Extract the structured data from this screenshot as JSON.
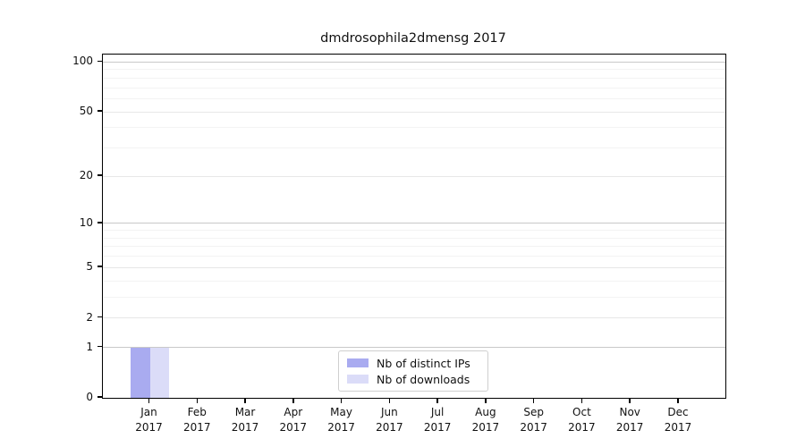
{
  "title": "dmdrosophila2dmensg 2017",
  "chart_data": {
    "type": "bar",
    "categories": [
      "Jan 2017",
      "Feb 2017",
      "Mar 2017",
      "Apr 2017",
      "May 2017",
      "Jun 2017",
      "Jul 2017",
      "Aug 2017",
      "Sep 2017",
      "Oct 2017",
      "Nov 2017",
      "Dec 2017"
    ],
    "x_tick_months": [
      "Jan",
      "Feb",
      "Mar",
      "Apr",
      "May",
      "Jun",
      "Jul",
      "Aug",
      "Sep",
      "Oct",
      "Nov",
      "Dec"
    ],
    "x_tick_year": "2017",
    "series": [
      {
        "name": "Nb of distinct IPs",
        "color": "#a9abf0",
        "values": [
          1,
          0,
          0,
          0,
          0,
          0,
          0,
          0,
          0,
          0,
          0,
          0
        ]
      },
      {
        "name": "Nb of downloads",
        "color": "#dbdcf8",
        "values": [
          1,
          0,
          0,
          0,
          0,
          0,
          0,
          0,
          0,
          0,
          0,
          0
        ]
      }
    ],
    "title": "dmdrosophila2dmensg 2017",
    "xlabel": "",
    "ylabel": "",
    "y_scale": "log1p",
    "ylim": [
      0,
      111
    ],
    "y_major_ticks": [
      100,
      50,
      20,
      10,
      5,
      2,
      1,
      0
    ],
    "y_minor_gridlines": [
      3,
      4,
      6,
      7,
      8,
      9,
      30,
      40,
      60,
      70,
      80,
      90
    ],
    "grid": true,
    "legend_position": "lower center"
  },
  "legend": {
    "items": [
      {
        "label": "Nb of distinct IPs",
        "color": "#a9abf0"
      },
      {
        "label": "Nb of downloads",
        "color": "#dbdcf8"
      }
    ]
  },
  "colors": {
    "background": "#ffffff",
    "spine": "#000000",
    "grid_decade": "#c9c9c9",
    "grid_mid": "#e7e7e7",
    "grid_minor": "#f3f3f3",
    "series1": "#a9abf0",
    "series2": "#dbdcf8"
  }
}
